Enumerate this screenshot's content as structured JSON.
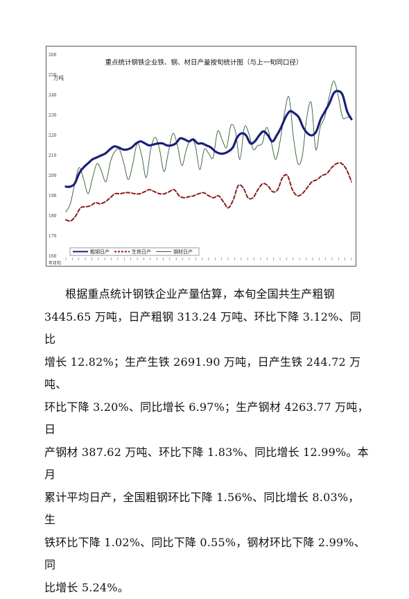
{
  "chart_data": {
    "type": "line",
    "title": "重点统计钢铁企业铁、钢、材日产量按旬统计图（与上一旬同口径）",
    "ylabel": "万吨",
    "xlabel": "年月旬",
    "ylim": [
      160,
      260
    ],
    "yticks": [
      160,
      170,
      180,
      190,
      200,
      210,
      220,
      230,
      240,
      250,
      260
    ],
    "legend": [
      "粗钢日产",
      "生铁日产",
      "钢材日产"
    ],
    "legend_position": "bottom",
    "colors": {
      "crude_steel": "#1a1f7a",
      "pig_iron": "#8b1a1a",
      "steel_products": "#2f5a2f"
    },
    "series": [
      {
        "name": "粗钢日产",
        "values": [
          194.5,
          194.5,
          196,
          201,
          204,
          206,
          208,
          209,
          210,
          211,
          213,
          214.5,
          214,
          213,
          213,
          214,
          216,
          217,
          216,
          215,
          215.5,
          216,
          216,
          215,
          215,
          216,
          218.5,
          218,
          217,
          218,
          216,
          216,
          215,
          214,
          212,
          211,
          211,
          212,
          214,
          219,
          221,
          220,
          216,
          217,
          220,
          222,
          220,
          217,
          220,
          224,
          229,
          232,
          231,
          229,
          224,
          221,
          220,
          222,
          228,
          232,
          236,
          241,
          242,
          240,
          232,
          228
        ]
      },
      {
        "name": "生铁日产",
        "values": [
          178,
          177.5,
          180,
          184,
          184.5,
          185,
          186.5,
          186,
          187,
          189,
          191,
          191,
          191.5,
          191.5,
          191,
          191,
          192,
          193,
          192,
          191,
          191,
          192,
          193,
          190,
          189,
          189.5,
          190,
          191,
          191.5,
          190,
          189,
          190,
          187,
          184,
          188,
          195,
          194,
          189,
          189,
          193,
          196,
          195,
          192,
          193,
          199,
          200,
          193,
          190,
          191,
          194,
          197,
          198,
          200,
          201,
          204,
          206,
          206,
          203,
          197
        ]
      },
      {
        "name": "钢材日产",
        "values": [
          182,
          186,
          196,
          204,
          198,
          191,
          199,
          206,
          202,
          197,
          207,
          212,
          213,
          206,
          198,
          206,
          216,
          210,
          199,
          213,
          219,
          213,
          202,
          212,
          221,
          215,
          205,
          213,
          218,
          215,
          203,
          213,
          211,
          209,
          222,
          218,
          214,
          225,
          222,
          208,
          224,
          221,
          213,
          215,
          216,
          224,
          217,
          208,
          217,
          231,
          239,
          219,
          206,
          210,
          229,
          236,
          213,
          224,
          229,
          239,
          247,
          240,
          229,
          229,
          229
        ]
      }
    ]
  },
  "body": {
    "lines": [
      "根据重点统计钢铁企业产量估算，本旬全国共生产粗钢",
      "3445.65 万吨，日产粗钢 313.24 万吨、环比下降 3.12%、同比",
      "增长 12.82%；生产生铁 2691.90 万吨，日产生铁 244.72 万吨、",
      "环比下降 3.20%、同比增长 6.97%；生产钢材 4263.77 万吨，日",
      "产钢材 387.62 万吨、环比下降 1.83%、同比增长 12.99%。本月",
      "累计平均日产，全国粗钢环比下降 1.56%、同比增长 8.03%，生",
      "铁环比下降 1.02%、同比下降 0.55%，钢材环比下降 2.99%、同",
      "比增长 5.24%。"
    ]
  }
}
